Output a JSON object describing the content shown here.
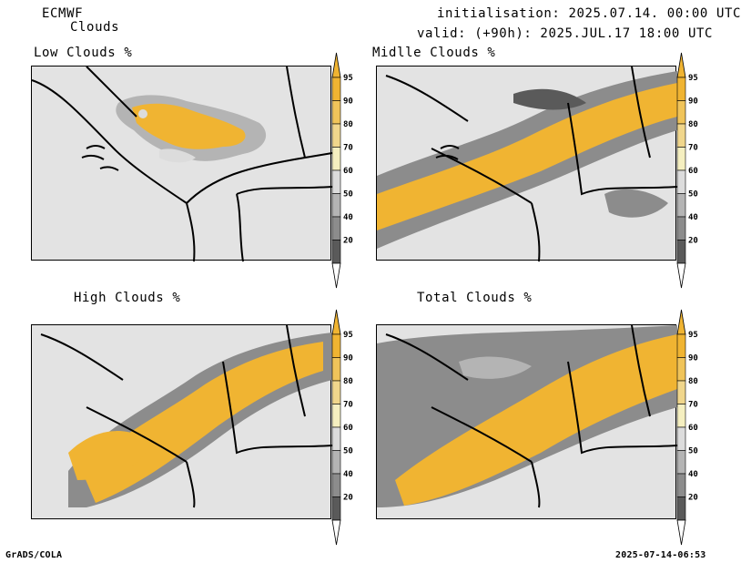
{
  "header": {
    "model": "ECMWF",
    "product": "Clouds",
    "init": "initialisation: 2025.07.14. 00:00 UTC",
    "valid": "valid: (+90h): 2025.JUL.17 18:00 UTC"
  },
  "panels": [
    {
      "title": "Low Clouds %"
    },
    {
      "title": "Midlle Clouds %"
    },
    {
      "title": "High Clouds %"
    },
    {
      "title": "Total Clouds %"
    }
  ],
  "colorbar": {
    "levels": [
      "95",
      "90",
      "80",
      "70",
      "60",
      "50",
      "40",
      "20"
    ],
    "colors": [
      "#f0b432",
      "#f0c45a",
      "#f0d68c",
      "#f5efc0",
      "#dcdcdc",
      "#b4b4b4",
      "#8c8c8c",
      "#5a5a5a"
    ],
    "top_color": "#f0b432",
    "bottom_color": "#ffffff"
  },
  "footer": {
    "left": "GrADS/COLA",
    "right": "2025-07-14-06:53"
  }
}
